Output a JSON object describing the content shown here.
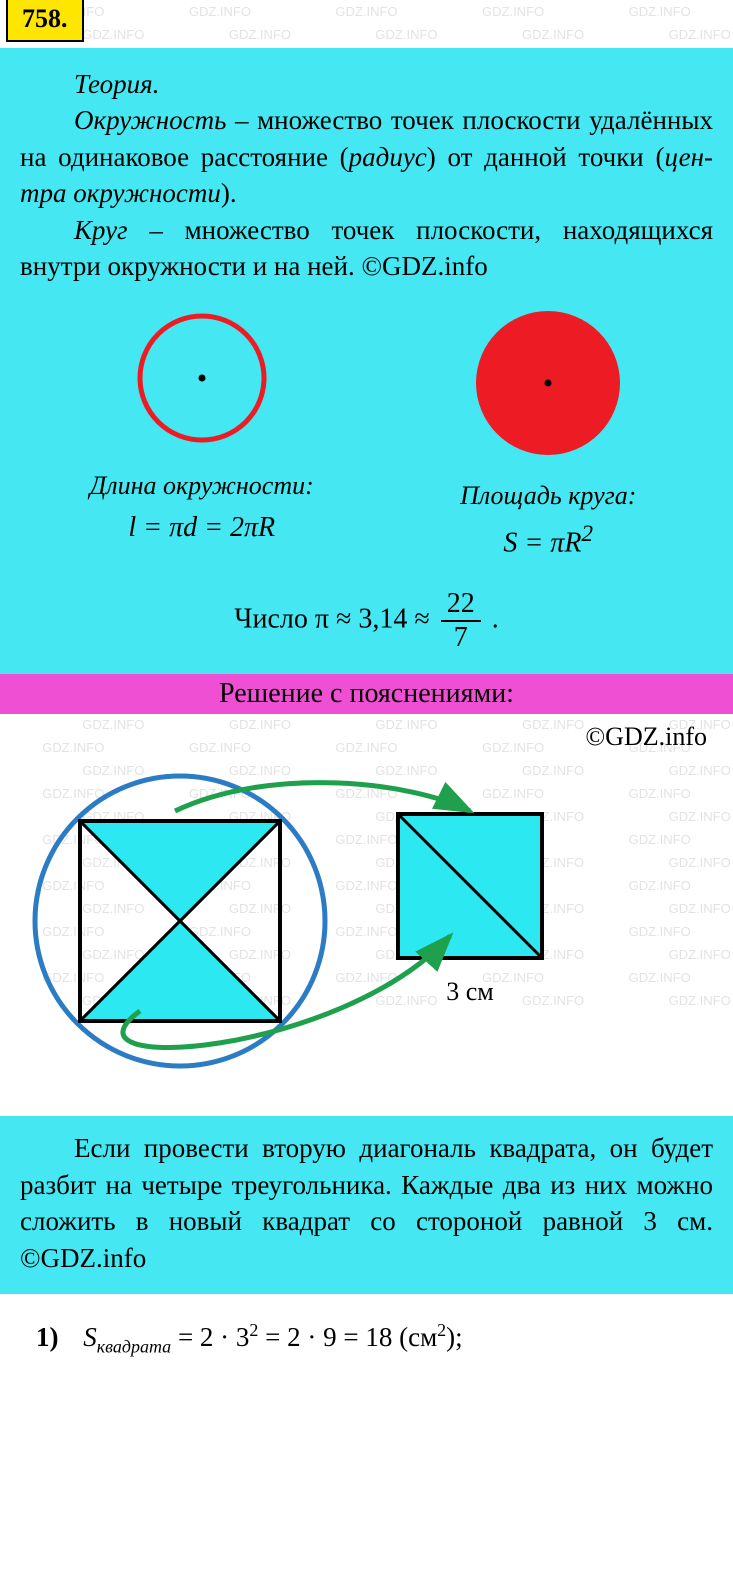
{
  "watermark_text": "GDZ.INFO",
  "badge": {
    "number": "758."
  },
  "colors": {
    "theory_bg": "#45e8f2",
    "badge_bg": "#ffe600",
    "solution_header_bg": "#ee4fd3",
    "circle_outline": "#ed1c24",
    "disk_fill": "#ed1c24",
    "square_fill": "#2ce8f0",
    "arrow_green": "#1fa04d",
    "big_circle_stroke": "#2b7cc4"
  },
  "theory": {
    "heading": "Теория.",
    "circle_def_prefix": "Окружность",
    "circle_def_rest": " – множество точек плоскости удалённых на одинаковое рас­стояние (",
    "radius_word": "радиус",
    "circle_def_mid": ") от данной точки (",
    "center_word": "цен­тра окружности",
    "circle_def_end": ").",
    "disk_def_prefix": "Круг",
    "disk_def_rest": " – множество точек плоскости, находящихся внутри окружности и на ней. ©GDZ.info"
  },
  "figures": {
    "circumference_caption": "Длина окружности:",
    "circumference_formula": "l = πd = 2πR",
    "area_caption": "Площадь круга:",
    "area_formula_base": "S = πR",
    "area_formula_sup": "2",
    "pi_prefix": "Число  π ≈ 3,14 ≈ ",
    "pi_num": "22",
    "pi_den": "7",
    "pi_suffix": " ."
  },
  "solution": {
    "header": "Решение с пояснениями:",
    "copyright": "©GDZ.info",
    "small_square_label": "3 см"
  },
  "explanation": "Если провести вторую диагональ квадрата, он будет разбит на четыре треугольника. Каждые два из них можно сложить в новый квадрат со стороной равной 3 см. ©GDZ.info",
  "step1": {
    "num": "1)",
    "var": "S",
    "sub": "квадрата",
    "expr": " = 2 · 3",
    "sup1": "2",
    "expr2": " = 2 · 9 = 18  (см",
    "sup2": "2",
    "expr3": ");"
  }
}
